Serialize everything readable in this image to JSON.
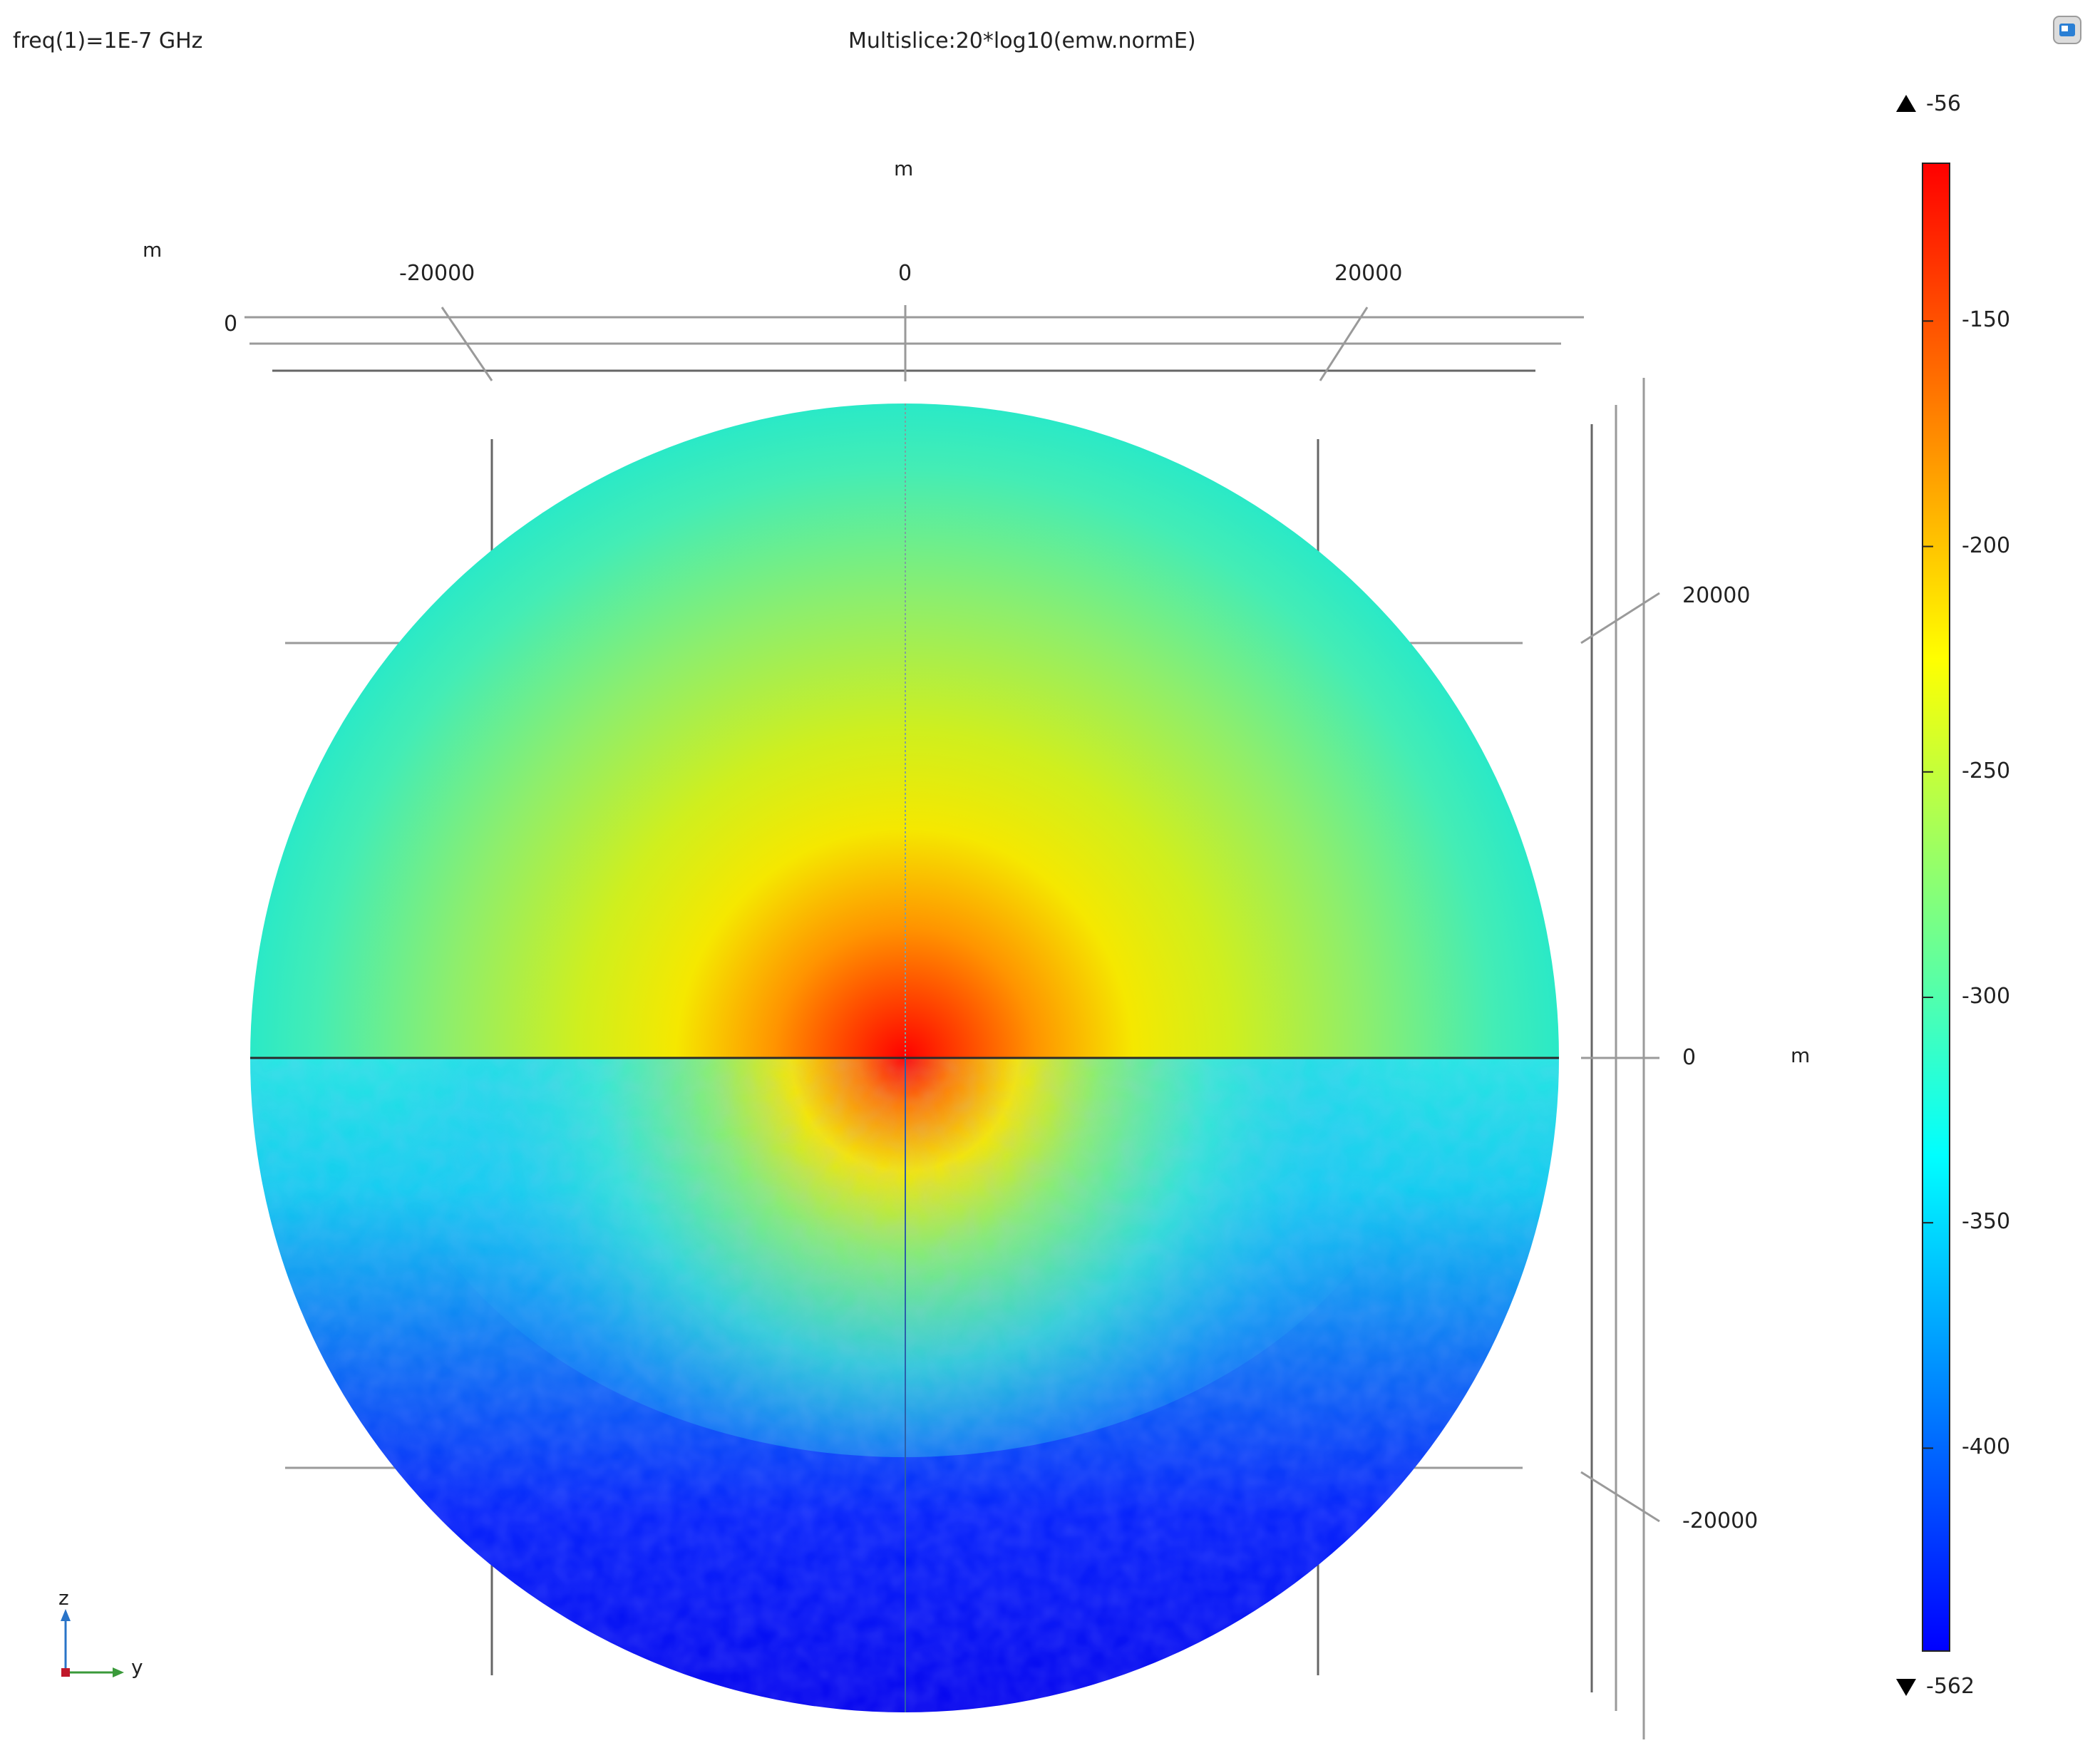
{
  "header": {
    "parameter_label": "freq(1)=1E-7 GHz",
    "plot_title": "Multislice:20*log10(emw.normE)"
  },
  "colors": {
    "jet": [
      "#0000ff",
      "#007fff",
      "#00ffff",
      "#7fff7f",
      "#ffff00",
      "#ff7f00",
      "#ff0000"
    ],
    "axis_line": "#9a9a9a",
    "frame": "#2a2a2a"
  },
  "axes": {
    "top_unit": "m",
    "topleft_unit": "m",
    "right_unit": "m",
    "top_offset_label": "0",
    "top_ticks": [
      "-20000",
      "0",
      "20000"
    ],
    "right_ticks": [
      "20000",
      "0",
      "-20000"
    ]
  },
  "triad": {
    "z_label": "z",
    "y_label": "y",
    "icon": "xyz-axis-triad-icon"
  },
  "corner_icon": "view-window-icon",
  "chart_data": {
    "type": "heatmap",
    "title": "Multislice:20*log10(emw.normE)",
    "subtitle": "freq(1)=1E-7 GHz",
    "xlabel": "m",
    "ylabel": "m",
    "xlim": [
      -32000,
      32000
    ],
    "ylim": [
      -32000,
      32000
    ],
    "x_ticks": [
      -20000,
      0,
      20000
    ],
    "y_ticks": [
      20000,
      0,
      -20000
    ],
    "colorscale": "jet",
    "color_range": {
      "min": -562,
      "max": -56
    },
    "colorbar_range": [
      -445,
      -115
    ],
    "colorbar_ticks": [
      -150,
      -200,
      -250,
      -300,
      -350,
      -400
    ],
    "colorbar_max_label": "-56",
    "colorbar_min_label": "-562",
    "domain": "sphere cross-section",
    "source_point": [
      0,
      0
    ],
    "interface_level": 0
  }
}
